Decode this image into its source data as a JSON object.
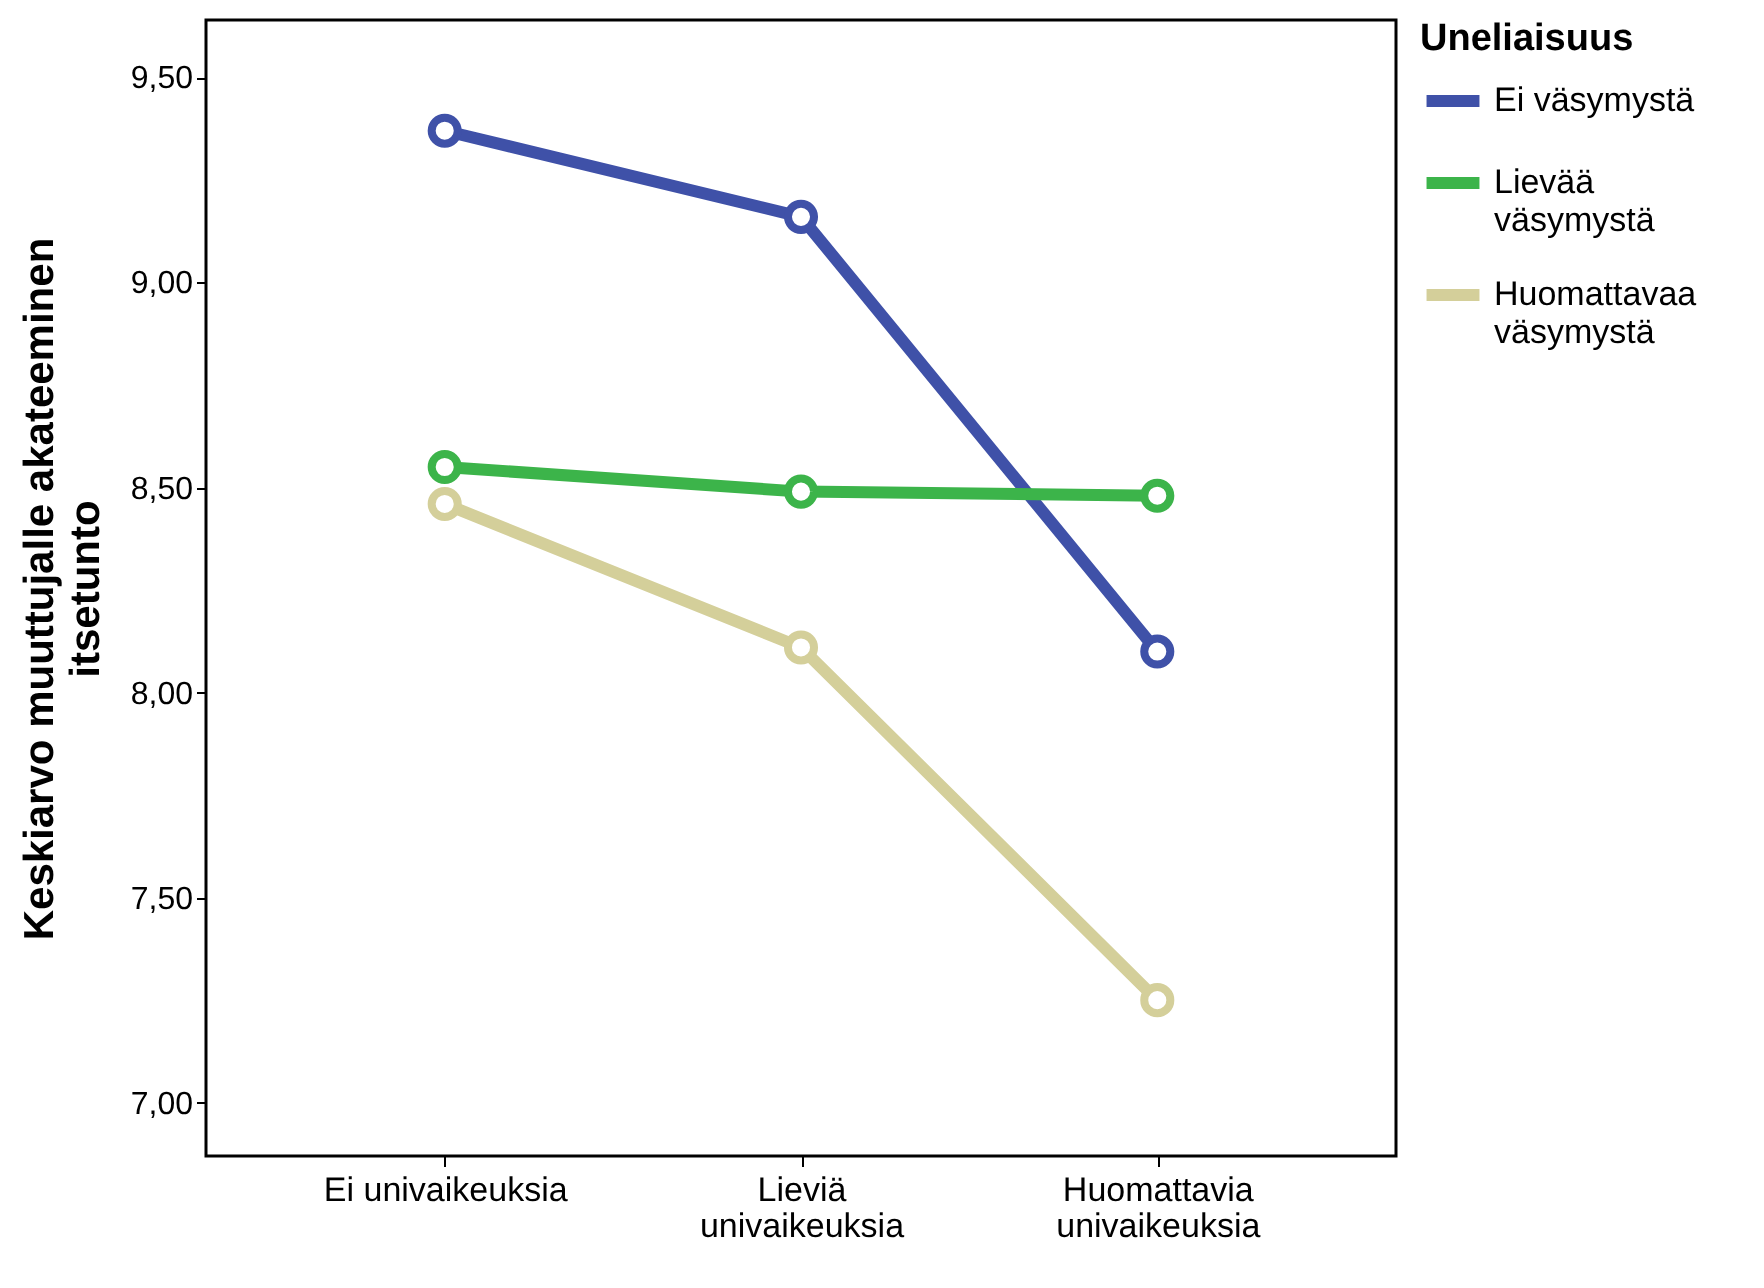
{
  "chart_data": {
    "type": "line",
    "ylabel": "Keskiarvo muuttujalle akateeminen itsetunto",
    "legend_title": "Uneliaisuus",
    "legend": "right",
    "marker": "circle",
    "line_style": "solid",
    "grid": false,
    "categories": [
      "Ei univaikeuksia",
      "Lieviä univaikeuksia",
      "Huomattavia univaikeuksia"
    ],
    "ylim": [
      6.87,
      9.64
    ],
    "yticks": [
      {
        "value": 7,
        "label": "7,00"
      },
      {
        "value": 7.5,
        "label": "7,50"
      },
      {
        "value": 8,
        "label": "8,00"
      },
      {
        "value": 8.5,
        "label": "8,50"
      },
      {
        "value": 9,
        "label": "9,00"
      },
      {
        "value": 9.5,
        "label": "9,50"
      }
    ],
    "series": [
      {
        "name": "Ei väsymystä",
        "color": "#3f51a8",
        "values": [
          9.37,
          9.16,
          8.1
        ]
      },
      {
        "name": "Lievää väsymystä",
        "color": "#3cb44a",
        "values": [
          8.55,
          8.49,
          8.48
        ]
      },
      {
        "name": "Huomattavaa väsymystä",
        "color": "#d4cf9a",
        "values": [
          8.46,
          8.11,
          7.25
        ]
      }
    ]
  }
}
